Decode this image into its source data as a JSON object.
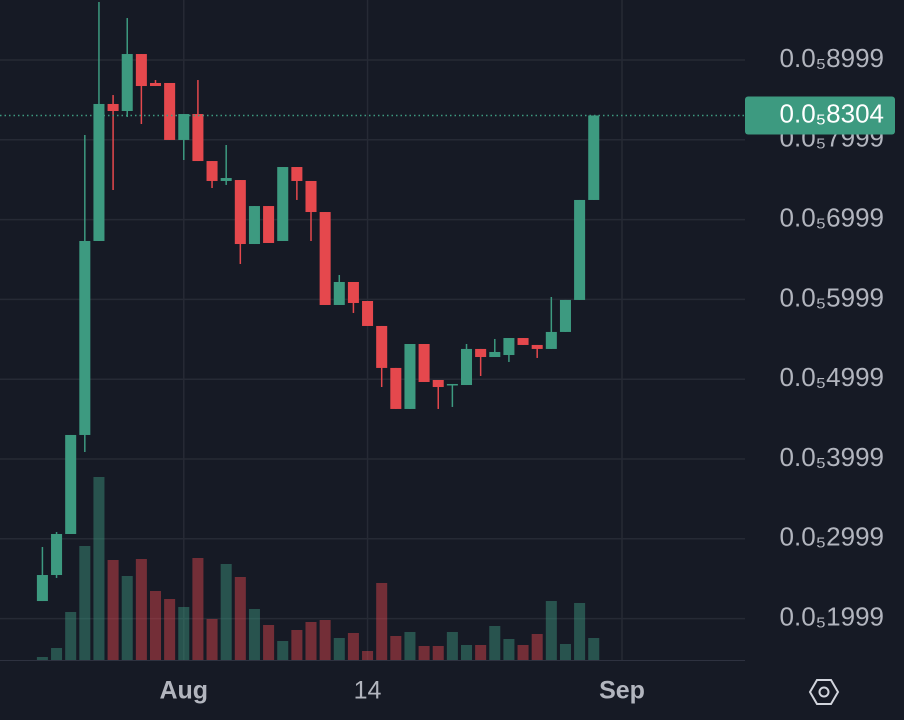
{
  "chart_data": {
    "type": "candlestick",
    "x": [
      0,
      1,
      2,
      3,
      4,
      5,
      6,
      7,
      8,
      9,
      10,
      11,
      12,
      13,
      14,
      15,
      16,
      17,
      18,
      19,
      20,
      21,
      22,
      23,
      24,
      25,
      26,
      27,
      28,
      29,
      30,
      31,
      32,
      33,
      34,
      35,
      36,
      37,
      38,
      39
    ],
    "open": [
      2.219e-06,
      2.545e-06,
      3.059e-06,
      4.3e-06,
      6.731e-06,
      8.448e-06,
      8.36e-06,
      9.074e-06,
      8.711e-06,
      8.711e-06,
      7.997e-06,
      8.322e-06,
      7.733e-06,
      7.483e-06,
      7.495e-06,
      6.693e-06,
      7.169e-06,
      6.731e-06,
      7.658e-06,
      7.483e-06,
      7.094e-06,
      5.929e-06,
      6.217e-06,
      5.979e-06,
      5.666e-06,
      5.14e-06,
      4.626e-06,
      5.44e-06,
      4.989e-06,
      4.926e-06,
      4.926e-06,
      5.378e-06,
      5.277e-06,
      5.302e-06,
      5.515e-06,
      5.428e-06,
      5.378e-06,
      5.591e-06,
      5.992e-06,
      7.245e-06
    ],
    "high": [
      2.896e-06,
      3.084e-06,
      4.3e-06,
      8.059e-06,
      9.726e-06,
      8.56e-06,
      9.525e-06,
      9.074e-06,
      8.748e-06,
      8.711e-06,
      8.322e-06,
      8.748e-06,
      7.733e-06,
      7.934e-06,
      7.495e-06,
      7.169e-06,
      7.169e-06,
      7.658e-06,
      7.658e-06,
      7.483e-06,
      7.094e-06,
      6.305e-06,
      6.217e-06,
      5.979e-06,
      5.666e-06,
      5.14e-06,
      5.44e-06,
      5.44e-06,
      4.989e-06,
      4.939e-06,
      5.44e-06,
      5.378e-06,
      5.503e-06,
      5.515e-06,
      5.515e-06,
      5.428e-06,
      6.029e-06,
      5.992e-06,
      7.245e-06,
      8.304e-06
    ],
    "low": [
      2.219e-06,
      2.508e-06,
      3.059e-06,
      4.087e-06,
      6.731e-06,
      7.37e-06,
      8.285e-06,
      8.197e-06,
      8.673e-06,
      7.997e-06,
      7.746e-06,
      7.733e-06,
      7.395e-06,
      7.433e-06,
      6.443e-06,
      6.693e-06,
      6.706e-06,
      6.731e-06,
      7.245e-06,
      6.731e-06,
      5.929e-06,
      5.929e-06,
      5.829e-06,
      5.666e-06,
      4.901e-06,
      4.626e-06,
      4.626e-06,
      4.964e-06,
      4.626e-06,
      4.651e-06,
      4.926e-06,
      5.039e-06,
      5.277e-06,
      5.215e-06,
      5.428e-06,
      5.265e-06,
      5.378e-06,
      5.591e-06,
      5.992e-06,
      7.245e-06
    ],
    "close": [
      2.545e-06,
      3.059e-06,
      4.3e-06,
      6.731e-06,
      8.448e-06,
      8.36e-06,
      9.074e-06,
      8.673e-06,
      8.673e-06,
      7.997e-06,
      8.322e-06,
      7.733e-06,
      7.483e-06,
      7.52e-06,
      6.693e-06,
      7.169e-06,
      6.706e-06,
      7.658e-06,
      7.483e-06,
      7.094e-06,
      5.929e-06,
      6.217e-06,
      5.954e-06,
      5.666e-06,
      5.14e-06,
      4.626e-06,
      5.44e-06,
      4.964e-06,
      4.901e-06,
      4.939e-06,
      5.378e-06,
      5.277e-06,
      5.34e-06,
      5.515e-06,
      5.428e-06,
      5.378e-06,
      5.591e-06,
      5.992e-06,
      7.245e-06,
      8.304e-06
    ],
    "up_color": "#3d9a80",
    "down_color": "#e5484d",
    "volume": {
      "values": [
        3,
        12,
        48,
        114,
        183,
        100,
        84,
        101,
        69,
        61,
        53,
        102,
        41,
        96,
        83,
        51,
        35,
        19,
        30,
        38,
        40,
        22,
        27,
        9,
        77,
        24,
        28,
        14,
        14,
        28,
        15,
        15,
        34,
        21,
        15,
        26,
        59,
        16,
        57,
        22
      ],
      "lim": [
        0,
        660
      ]
    },
    "xlim": [
      -3,
      49.7
    ],
    "xticks": [
      {
        "value": 10,
        "label": "Aug"
      },
      {
        "value": 23,
        "label": "14"
      },
      {
        "value": 41,
        "label": "Sep"
      }
    ],
    "ylim": [
      1.48e-06,
      9.751e-06
    ],
    "yticks": [
      {
        "value": 1.999e-06,
        "label": "0.0₅1999"
      },
      {
        "value": 2.999e-06,
        "label": "0.0₅2999"
      },
      {
        "value": 3.999e-06,
        "label": "0.0₅3999"
      },
      {
        "value": 4.999e-06,
        "label": "0.0₅4999"
      },
      {
        "value": 5.999e-06,
        "label": "0.0₅5999"
      },
      {
        "value": 6.999e-06,
        "label": "0.0₅6999"
      },
      {
        "value": 7.999e-06,
        "label": "0.0₅7999"
      },
      {
        "value": 8.999e-06,
        "label": "0.0₅8999"
      }
    ],
    "last_price": {
      "value": 8.304e-06,
      "label": "0.0₅8304"
    },
    "grid": true
  }
}
